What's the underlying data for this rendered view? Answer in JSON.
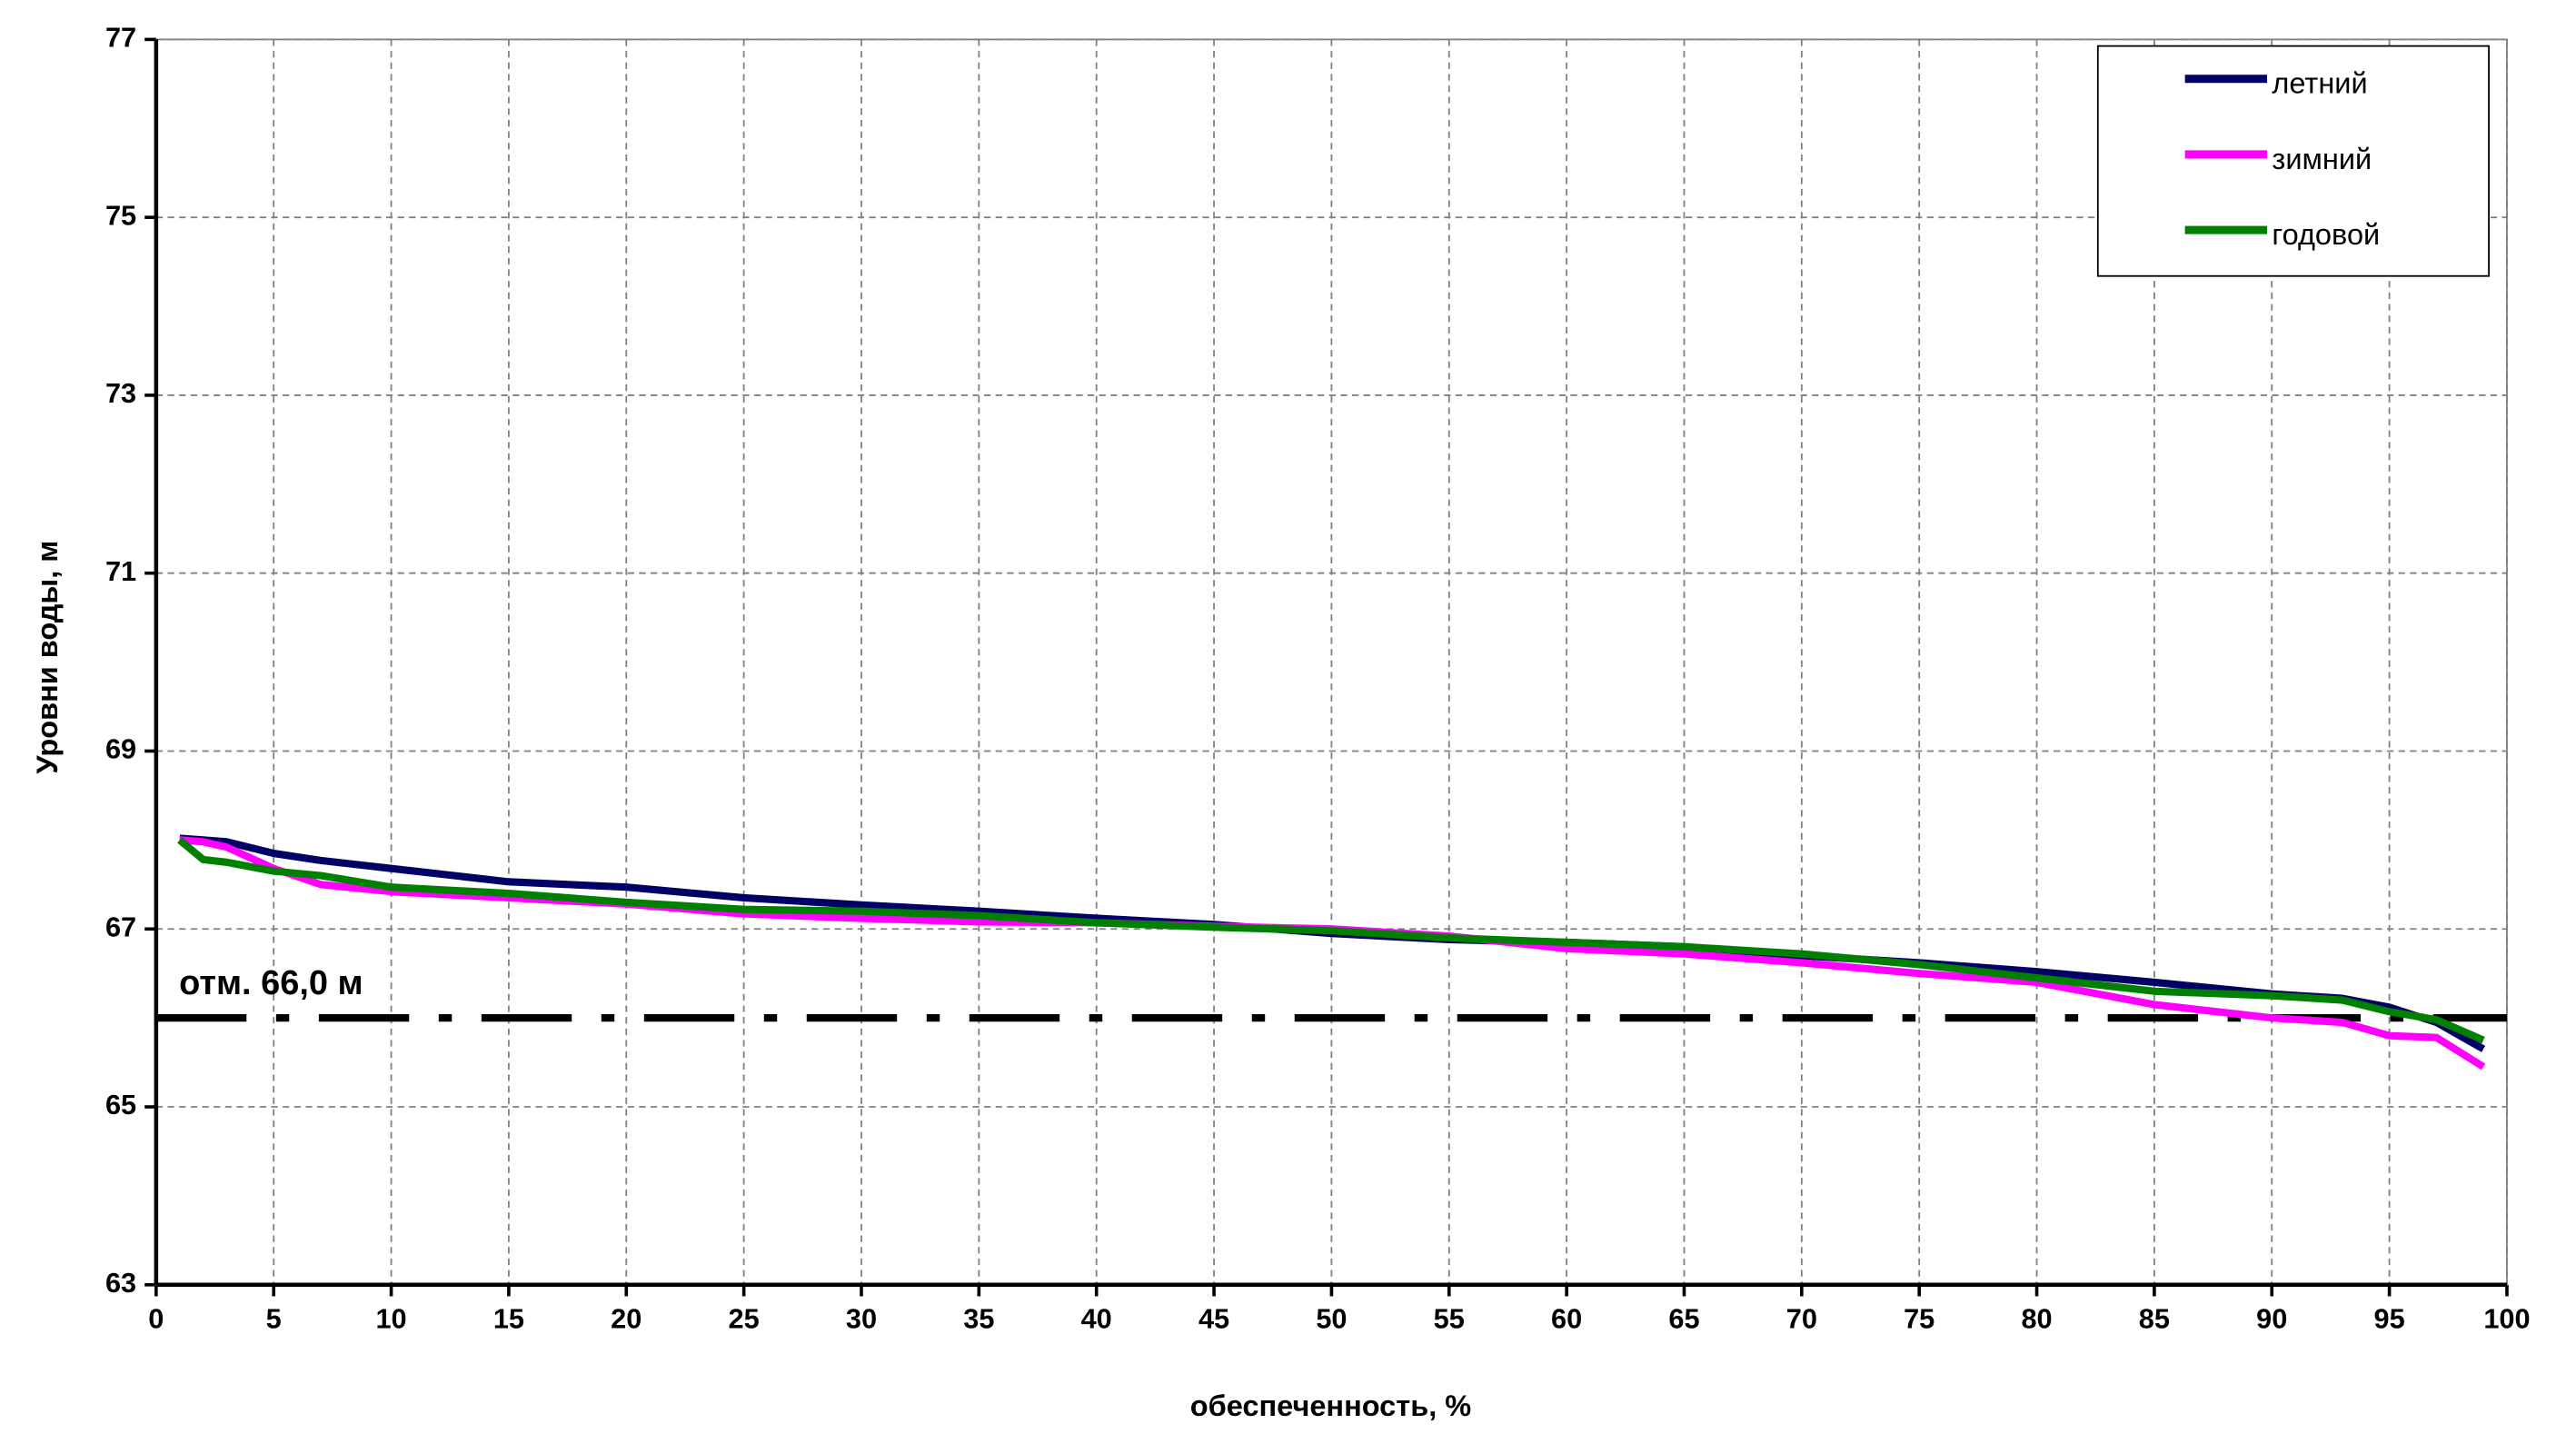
{
  "chart_data": {
    "type": "line",
    "xlabel": "обеспеченность, %",
    "ylabel": "Уровни воды, м",
    "xlim": [
      0,
      100
    ],
    "xticks": [
      0,
      5,
      10,
      15,
      20,
      25,
      30,
      35,
      40,
      45,
      50,
      55,
      60,
      65,
      70,
      75,
      80,
      85,
      90,
      95,
      100
    ],
    "ylim": [
      63,
      77
    ],
    "yticks": [
      63,
      65,
      67,
      69,
      71,
      73,
      75,
      77
    ],
    "grid": true,
    "legend": "upper right",
    "x": [
      1,
      2,
      3,
      5,
      7,
      10,
      15,
      20,
      25,
      30,
      35,
      40,
      45,
      50,
      55,
      60,
      65,
      70,
      75,
      80,
      85,
      90,
      93,
      95,
      97,
      99
    ],
    "series": [
      {
        "name": "летний",
        "color": "#000066",
        "values": [
          68.02,
          68.0,
          67.98,
          67.85,
          67.77,
          67.68,
          67.53,
          67.47,
          67.35,
          67.27,
          67.2,
          67.12,
          67.05,
          66.95,
          66.88,
          66.85,
          66.8,
          66.7,
          66.62,
          66.52,
          66.4,
          66.27,
          66.22,
          66.12,
          65.95,
          65.65
        ]
      },
      {
        "name": "зимний",
        "color": "#ff00ff",
        "values": [
          68.0,
          67.98,
          67.92,
          67.68,
          67.5,
          67.42,
          67.35,
          67.28,
          67.17,
          67.12,
          67.08,
          67.07,
          67.03,
          67.0,
          66.92,
          66.78,
          66.72,
          66.62,
          66.5,
          66.4,
          66.15,
          66.0,
          65.95,
          65.8,
          65.78,
          65.45
        ]
      },
      {
        "name": "годовой",
        "color": "#008000",
        "values": [
          68.0,
          67.78,
          67.75,
          67.65,
          67.6,
          67.47,
          67.4,
          67.3,
          67.22,
          67.2,
          67.15,
          67.07,
          67.02,
          66.98,
          66.9,
          66.85,
          66.8,
          66.72,
          66.6,
          66.45,
          66.3,
          66.25,
          66.2,
          66.07,
          65.98,
          65.75
        ]
      }
    ],
    "reference_line": {
      "value": 66,
      "label": "отм. 66,0 м",
      "color": "#000000"
    }
  }
}
